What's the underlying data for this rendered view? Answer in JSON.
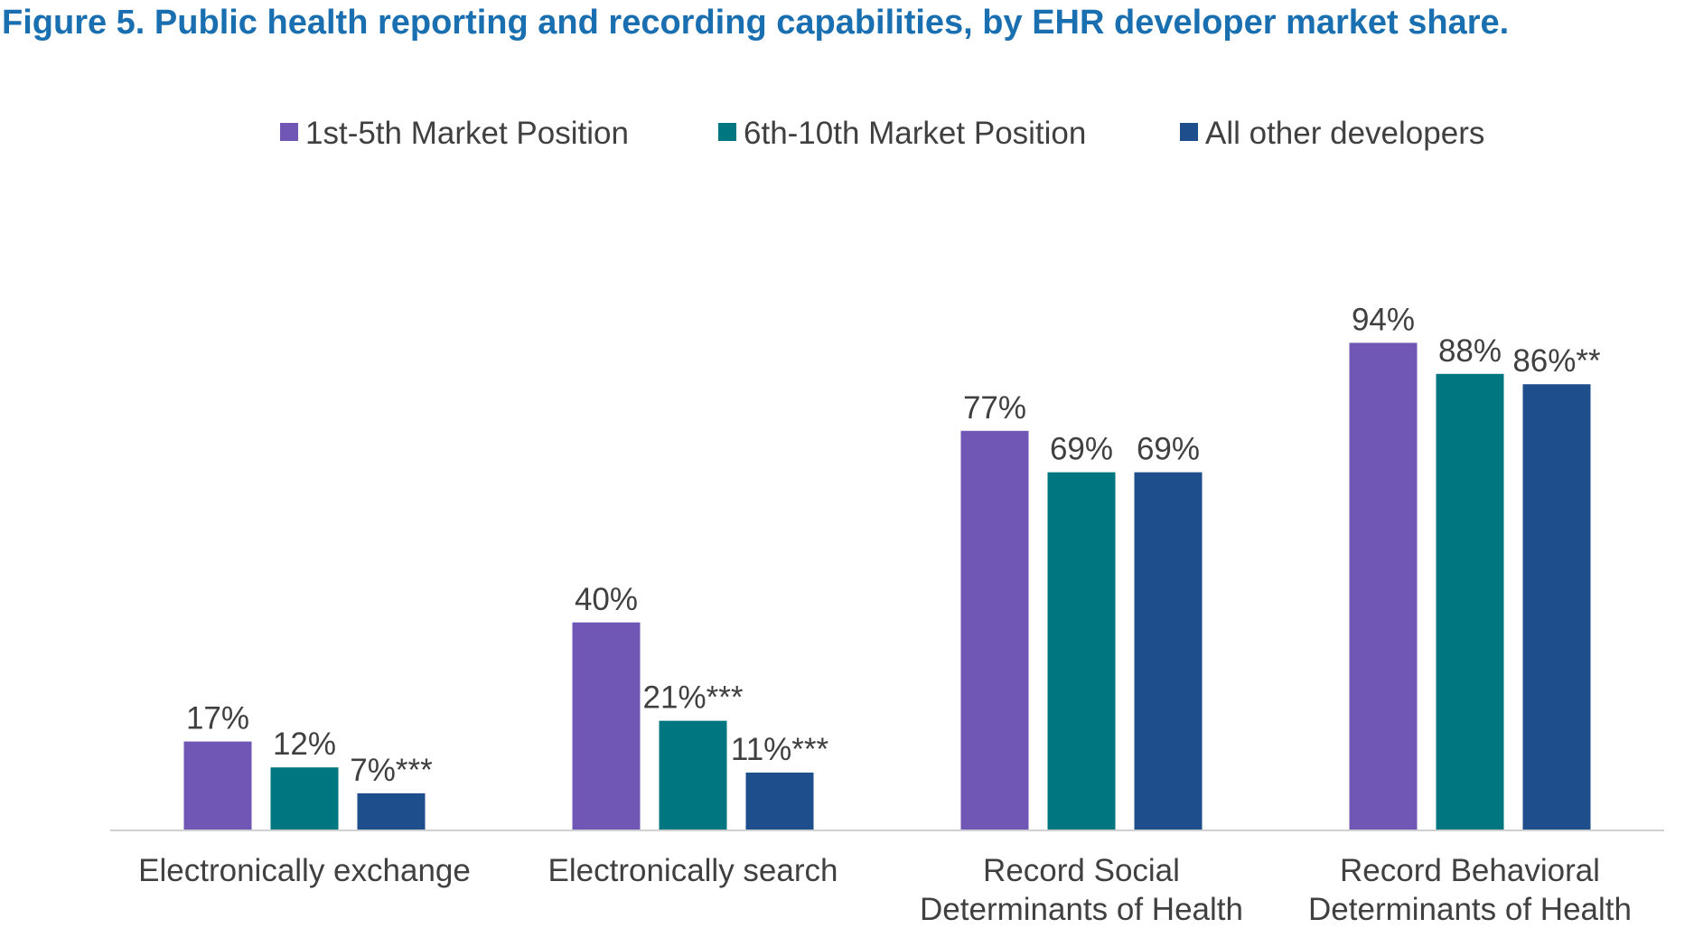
{
  "title": "Figure 5. Public health reporting and recording capabilities, by EHR developer market share.",
  "chart_data": {
    "type": "bar",
    "title": "Figure 5. Public health reporting and recording capabilities, by EHR developer market share.",
    "xlabel": "",
    "ylabel": "",
    "ylim": [
      0,
      100
    ],
    "grid": false,
    "legend_position": "top",
    "categories": [
      [
        "Electronically exchange"
      ],
      [
        "Electronically search"
      ],
      [
        "Record Social",
        "Determinants of Health"
      ],
      [
        "Record Behavioral",
        "Determinants of Health"
      ]
    ],
    "series": [
      {
        "name": "1st-5th Market Position",
        "color": "#7157b5",
        "values": [
          17,
          40,
          77,
          94
        ],
        "labels": [
          "17%",
          "40%",
          "77%",
          "94%"
        ]
      },
      {
        "name": "6th-10th Market Position",
        "color": "#007681",
        "values": [
          12,
          21,
          69,
          88
        ],
        "labels": [
          "12%",
          "21%***",
          "69%",
          "88%"
        ]
      },
      {
        "name": "All other developers",
        "color": "#1f4e8c",
        "values": [
          7,
          11,
          69,
          86
        ],
        "labels": [
          "7%***",
          "11%***",
          "69%",
          "86%**"
        ]
      }
    ]
  }
}
